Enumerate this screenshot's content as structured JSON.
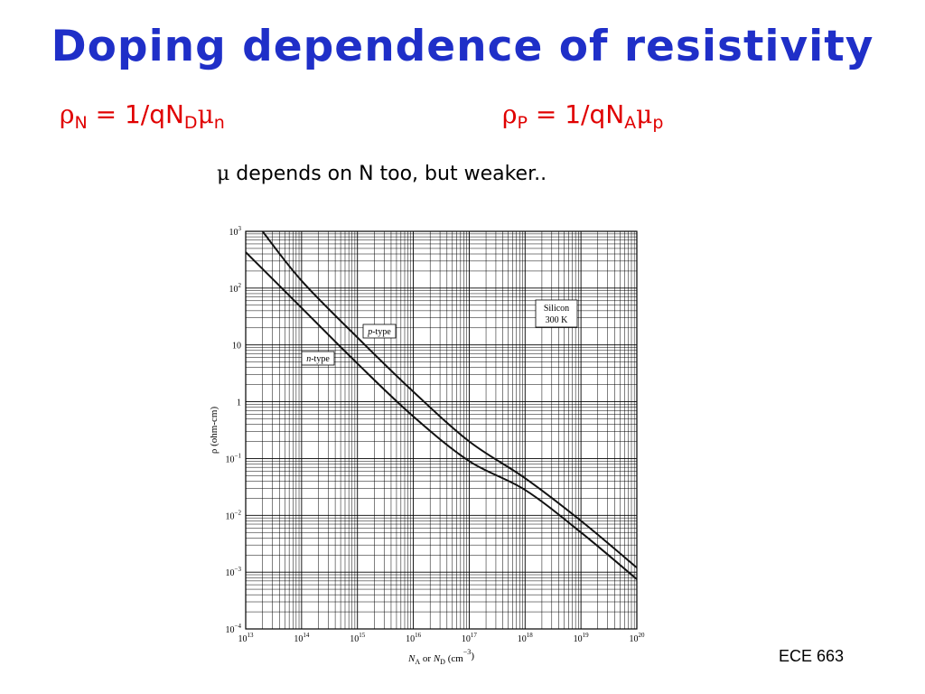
{
  "slide": {
    "title": "Doping dependence of resistivity",
    "formula_n": {
      "rho": "ρ",
      "rho_sub": "N",
      "mid": " = 1/qN",
      "n_sub": "D",
      "mu": "μ",
      "mu_sub": "n"
    },
    "formula_p": {
      "rho": "ρ",
      "rho_sub": "P",
      "mid": " = 1/qN",
      "n_sub": "A",
      "mu": "μ",
      "mu_sub": "p"
    },
    "note_symbol": "μ",
    "note_text": " depends on N too, but weaker..",
    "footer": "ECE 663"
  },
  "colors": {
    "title": "#1f2fc8",
    "formula": "#e00000"
  },
  "chart_data": {
    "type": "line",
    "xscale": "log",
    "yscale": "log",
    "xlim": [
      10000000000000.0,
      1e+20
    ],
    "ylim": [
      0.0001,
      1000.0
    ],
    "grid": true,
    "xlabel": "N_A or N_D (cm^-3)",
    "ylabel": "ρ (ohm-cm)",
    "x_ticks": [
      {
        "base": "10",
        "exp": "13"
      },
      {
        "base": "10",
        "exp": "14"
      },
      {
        "base": "10",
        "exp": "15"
      },
      {
        "base": "10",
        "exp": "16"
      },
      {
        "base": "10",
        "exp": "17"
      },
      {
        "base": "10",
        "exp": "18"
      },
      {
        "base": "10",
        "exp": "19"
      },
      {
        "base": "10",
        "exp": "20"
      }
    ],
    "y_ticks": [
      {
        "base": "10",
        "exp": "−4"
      },
      {
        "base": "10",
        "exp": "−3"
      },
      {
        "base": "10",
        "exp": "−2"
      },
      {
        "base": "10",
        "exp": "−1"
      },
      {
        "base": "1",
        "exp": ""
      },
      {
        "base": "10",
        "exp": ""
      },
      {
        "base": "10",
        "exp": "2"
      },
      {
        "base": "10",
        "exp": "3"
      }
    ],
    "annotation": {
      "line1": "Silicon",
      "line2": "300 K"
    },
    "series": [
      {
        "name": "p-type",
        "x": [
          20000000000000.0,
          100000000000000.0,
          1000000000000000.0,
          1e+16,
          1e+17,
          1e+18,
          1e+19,
          1e+20
        ],
        "y": [
          1000,
          135,
          13.5,
          1.5,
          0.2,
          0.045,
          0.008,
          0.0012
        ]
      },
      {
        "name": "n-type",
        "x": [
          10000000000000.0,
          100000000000000.0,
          1000000000000000.0,
          1e+16,
          1e+17,
          1e+18,
          1e+19,
          1e+20
        ],
        "y": [
          430,
          45,
          4.7,
          0.55,
          0.09,
          0.028,
          0.005,
          0.00075
        ]
      }
    ]
  }
}
